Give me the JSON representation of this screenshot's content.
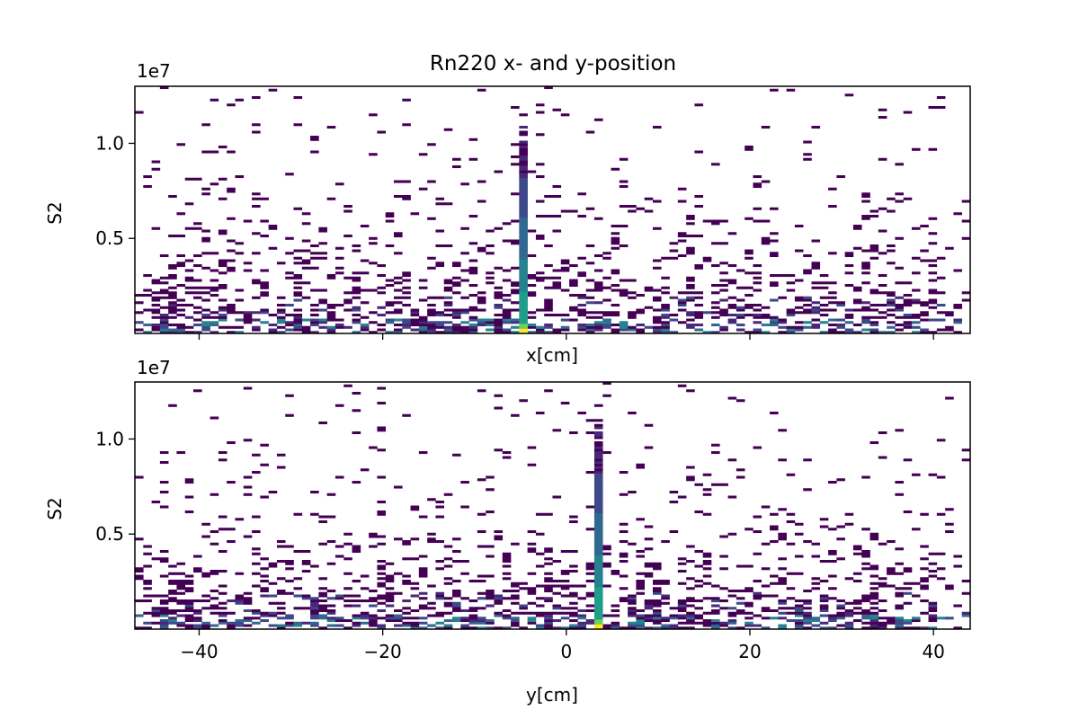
{
  "chart_data": {
    "type": "heatmap",
    "title": "Rn220 x- and y-position",
    "colormap": "viridis",
    "panels": [
      {
        "xlabel": "x[cm]",
        "ylabel": "S2",
        "y_offset_label": "1e7",
        "xlim": [
          -47,
          44
        ],
        "ylim": [
          0,
          13000000
        ],
        "xticks": [
          -40,
          -20,
          0,
          20,
          40
        ],
        "xtick_labels_visible": false,
        "yticks": [
          0.5,
          1.0
        ],
        "ytick_labels": [
          "0.5",
          "1.0"
        ],
        "hot_column_x": -4.5,
        "hot_column_top": 11000000,
        "secondary_hot_columns_x": [
          -44,
          -29,
          -10,
          42.5
        ]
      },
      {
        "xlabel": "y[cm]",
        "ylabel": "S2",
        "y_offset_label": "1e7",
        "xlim": [
          -47,
          44
        ],
        "ylim": [
          0,
          13000000
        ],
        "xticks": [
          -40,
          -20,
          0,
          20,
          40
        ],
        "xtick_labels": [
          "−40",
          "−20",
          "0",
          "20",
          "40"
        ],
        "xtick_labels_visible": true,
        "yticks": [
          0.5,
          1.0
        ],
        "ytick_labels": [
          "0.5",
          "1.0"
        ],
        "hot_column_x": 3.3,
        "hot_column_top": 11000000,
        "secondary_hot_columns_x": [
          -44,
          -20,
          10,
          33
        ]
      }
    ]
  }
}
